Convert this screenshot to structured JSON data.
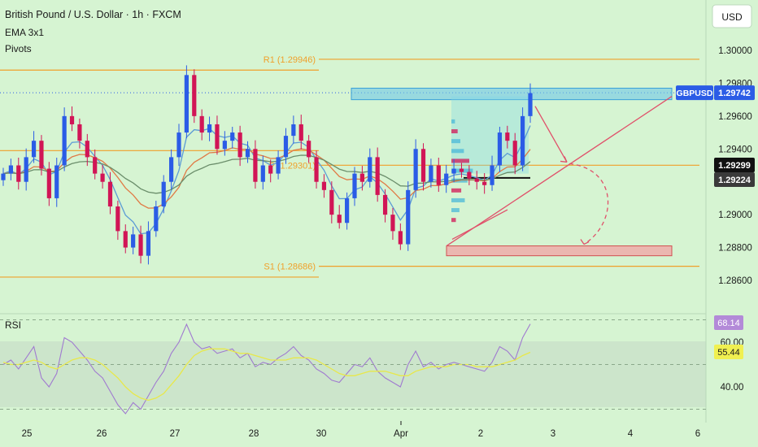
{
  "header": {
    "title": "British Pound / U.S. Dollar · 1h · FXCM",
    "indicator_1": "EMA 3x1",
    "indicator_2": "Pivots"
  },
  "currency_button": "USD",
  "colors": {
    "background": "#d6f4d2",
    "candle_up": "#2b5ce6",
    "candle_down": "#d11556",
    "pivot_line": "#f0a02a",
    "ema_1": "#5b9bd5",
    "ema_2": "#e07a45",
    "ema_3": "#6b8e6b",
    "rsi_line": "#a07ad0",
    "rsi_ma": "#e8e84a",
    "symbol_tag": "#2b5ce6",
    "resistance_box": "#6ec6e8",
    "support_box": "#f0a8a8",
    "trend_line": "#e0506a"
  },
  "chart_data": [
    {
      "type": "candlestick",
      "symbol": "GBPUSD",
      "y_ticks": [
        "1.30000",
        "1.29800",
        "1.29600",
        "1.29400",
        "1.29000",
        "1.28800",
        "1.28600"
      ],
      "ylim": [
        1.285,
        1.301
      ],
      "x_ticks": [
        "25",
        "26",
        "27",
        "28",
        "30",
        "Apr",
        "2",
        "3",
        "4",
        "6"
      ],
      "pivots": [
        {
          "name": "R1",
          "label": "R1 (1.29946)",
          "value": 1.29946
        },
        {
          "name": "P",
          "label": "P (1.29301)",
          "value": 1.29301
        },
        {
          "name": "S1",
          "label": "S1 (1.28686)",
          "value": 1.28686
        }
      ],
      "price_tags": [
        {
          "symbol": "GBPUSD",
          "value": "1.29742"
        },
        {
          "value": "1.29299"
        },
        {
          "value": "1.29224"
        }
      ],
      "close_path": [
        1.2925,
        1.293,
        1.292,
        1.2935,
        1.2945,
        1.2928,
        1.291,
        1.293,
        1.296,
        1.2955,
        1.2945,
        1.2935,
        1.2925,
        1.292,
        1.2905,
        1.289,
        1.288,
        1.2888,
        1.2875,
        1.289,
        1.2905,
        1.292,
        1.2935,
        1.295,
        1.2985,
        1.296,
        1.295,
        1.2955,
        1.294,
        1.2945,
        1.295,
        1.2935,
        1.294,
        1.292,
        1.293,
        1.2925,
        1.2935,
        1.2948,
        1.2955,
        1.2945,
        1.2935,
        1.292,
        1.2915,
        1.29,
        1.2895,
        1.291,
        1.2925,
        1.292,
        1.2935,
        1.2912,
        1.29,
        1.289,
        1.2882,
        1.2915,
        1.294,
        1.292,
        1.293,
        1.2918,
        1.2925,
        1.2928,
        1.2926,
        1.2922,
        1.292,
        1.2918,
        1.293,
        1.295,
        1.2945,
        1.293,
        1.296,
        1.2974
      ]
    },
    {
      "type": "line",
      "title": "RSI",
      "y_ticks": [
        "60.00",
        "40.00"
      ],
      "ylim": [
        20,
        75
      ],
      "rsi_values": [
        50,
        52,
        48,
        53,
        58,
        44,
        40,
        46,
        62,
        60,
        56,
        52,
        47,
        44,
        38,
        32,
        28,
        33,
        30,
        36,
        42,
        47,
        55,
        60,
        68,
        60,
        57,
        58,
        55,
        56,
        57,
        53,
        55,
        49,
        51,
        50,
        53,
        55,
        58,
        54,
        52,
        48,
        46,
        43,
        42,
        46,
        50,
        49,
        53,
        47,
        44,
        42,
        40,
        50,
        56,
        49,
        51,
        48,
        50,
        51,
        50,
        49,
        48,
        47,
        51,
        58,
        56,
        52,
        62,
        68.14
      ],
      "rsi_ma_values": [
        51,
        50,
        50,
        51,
        52,
        51,
        49,
        48,
        50,
        52,
        53,
        53,
        52,
        50,
        47,
        44,
        40,
        37,
        35,
        34,
        35,
        37,
        41,
        45,
        50,
        54,
        56,
        57,
        57,
        57,
        56,
        55,
        55,
        54,
        53,
        52,
        52,
        52,
        53,
        53,
        53,
        52,
        50,
        48,
        46,
        45,
        45,
        46,
        47,
        47,
        47,
        46,
        45,
        45,
        47,
        48,
        49,
        49,
        49,
        50,
        50,
        50,
        49,
        49,
        49,
        50,
        51,
        52,
        54,
        55.44
      ],
      "values": [
        {
          "name": "RSI",
          "value": "68.14"
        },
        {
          "name": "RSI MA",
          "value": "55.44"
        }
      ]
    }
  ]
}
